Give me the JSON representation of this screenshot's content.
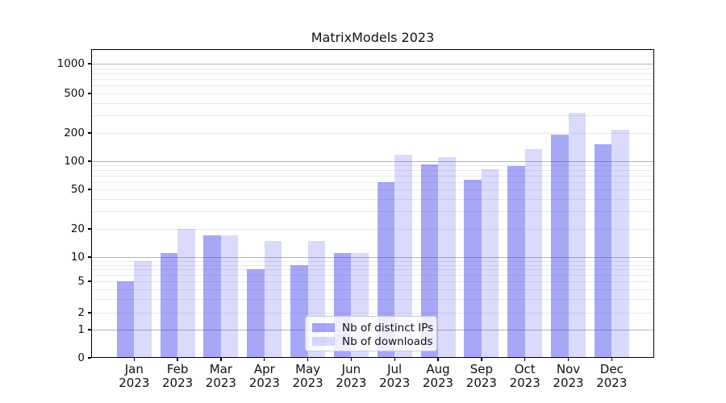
{
  "chart_data": {
    "type": "bar",
    "title": "MatrixModels 2023",
    "categories": [
      "Jan",
      "Feb",
      "Mar",
      "Apr",
      "May",
      "Jun",
      "Jul",
      "Aug",
      "Sep",
      "Oct",
      "Nov",
      "Dec"
    ],
    "category_year": "2023",
    "series": [
      {
        "name": "Nb of distinct IPs",
        "color": "rgba(60,60,240,0.45)",
        "values": [
          5,
          11,
          17,
          7,
          8,
          11,
          60,
          92,
          64,
          88,
          192,
          152
        ]
      },
      {
        "name": "Nb of downloads",
        "color": "rgba(60,60,240,0.19)",
        "values": [
          9,
          20,
          17,
          15,
          15,
          11,
          117,
          110,
          82,
          135,
          320,
          215
        ]
      }
    ],
    "xlabel": "",
    "ylabel": "",
    "y_axis": {
      "scale": "symlog",
      "ticks": [
        0,
        1,
        2,
        5,
        10,
        20,
        50,
        100,
        200,
        500,
        1000
      ],
      "anchors": [
        [
          0,
          0
        ],
        [
          1,
          0.0914
        ],
        [
          2,
          0.1462
        ],
        [
          5,
          0.248
        ],
        [
          10,
          0.3264
        ],
        [
          20,
          0.4178
        ],
        [
          50,
          0.5457
        ],
        [
          100,
          0.6371
        ],
        [
          200,
          0.7285
        ],
        [
          500,
          0.8564
        ],
        [
          1000,
          0.953
        ]
      ]
    },
    "grid": {
      "enabled": true,
      "major_color": "#b4b4b4",
      "minor_color": "#e9e9e9"
    },
    "legend": {
      "position": "lower center"
    }
  }
}
